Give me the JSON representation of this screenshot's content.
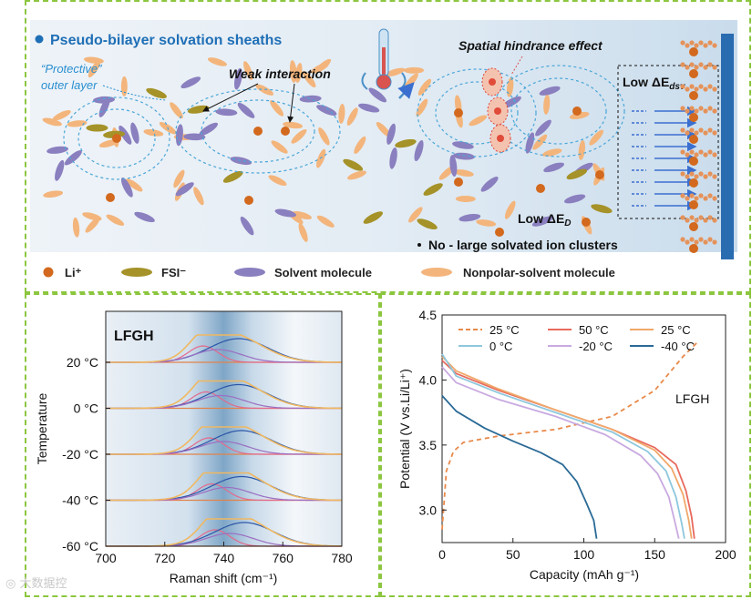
{
  "top": {
    "title": "Pseudo-bilayer solvation sheaths",
    "outer_layer": [
      "“Protective”",
      "outer layer"
    ],
    "weak_interaction": "Weak interaction",
    "spatial_hindrance": "Spatial hindrance effect",
    "low_edsv": "Low ΔE",
    "low_edsv_sub": "dsv",
    "low_ed": "Low ΔE",
    "low_ed_sub": "D",
    "no_clusters": "No - large solvated ion clusters",
    "legend": [
      {
        "label": "Li⁺",
        "kind": "li"
      },
      {
        "label": "FSI⁻",
        "kind": "fsi"
      },
      {
        "label": "Solvent molecule",
        "kind": "solvent"
      },
      {
        "label": "Nonpolar-solvent molecule",
        "kind": "nonpolar"
      }
    ],
    "colors": {
      "li": "#d2691e",
      "fsi": "#a59228",
      "solvent": "#8a7fbf",
      "nonpolar": "#f3b57c",
      "title": "#1f6fb6",
      "electrode": "#2a6cb0"
    }
  },
  "chart_data": [
    {
      "type": "line",
      "title": "LFGH",
      "xlabel": "Raman shift (cm⁻¹)",
      "ylabel": "Temperature",
      "xlim": [
        700,
        780
      ],
      "xticks": [
        "700",
        "720",
        "740",
        "760",
        "780"
      ],
      "yticks": [
        "20 °C",
        "0 °C",
        "-20 °C",
        "-40 °C",
        "-60 °C"
      ],
      "series": [
        {
          "temp": "20 °C",
          "envelope_peak": 738,
          "peaks": [
            733,
            745,
            738
          ]
        },
        {
          "temp": "0 °C",
          "envelope_peak": 739,
          "peaks": [
            734,
            745,
            739
          ]
        },
        {
          "temp": "-20 °C",
          "envelope_peak": 740,
          "peaks": [
            735,
            746,
            740
          ]
        },
        {
          "temp": "-40 °C",
          "envelope_peak": 741,
          "peaks": [
            736,
            746,
            741
          ]
        },
        {
          "temp": "-60 °C",
          "envelope_peak": 742,
          "peaks": [
            737,
            747,
            742
          ]
        }
      ]
    },
    {
      "type": "line",
      "annotation": "LFGH",
      "xlabel": "Capacity (mAh g⁻¹)",
      "ylabel": "Potential (V vs.Li/Li⁺)",
      "xlim": [
        0,
        200
      ],
      "ylim": [
        2.75,
        4.5
      ],
      "xticks": [
        "0",
        "50",
        "100",
        "150",
        "200"
      ],
      "yticks": [
        "3.0",
        "3.5",
        "4.0",
        "4.5"
      ],
      "series": [
        {
          "name": "25 °C",
          "color": "#e8894a",
          "dashed": true,
          "points": [
            [
              0,
              2.85
            ],
            [
              3,
              3.3
            ],
            [
              8,
              3.45
            ],
            [
              15,
              3.52
            ],
            [
              40,
              3.57
            ],
            [
              80,
              3.62
            ],
            [
              120,
              3.72
            ],
            [
              150,
              3.92
            ],
            [
              170,
              4.18
            ],
            [
              181,
              4.3
            ]
          ]
        },
        {
          "name": "50 °C",
          "color": "#e86a5e",
          "points": [
            [
              0,
              4.15
            ],
            [
              10,
              4.05
            ],
            [
              40,
              3.92
            ],
            [
              80,
              3.77
            ],
            [
              120,
              3.62
            ],
            [
              150,
              3.48
            ],
            [
              165,
              3.35
            ],
            [
              172,
              3.15
            ],
            [
              176,
              2.95
            ],
            [
              178,
              2.78
            ]
          ]
        },
        {
          "name": "25 °C",
          "color": "#f0a86a",
          "points": [
            [
              0,
              4.18
            ],
            [
              10,
              4.07
            ],
            [
              40,
              3.93
            ],
            [
              80,
              3.77
            ],
            [
              120,
              3.62
            ],
            [
              150,
              3.46
            ],
            [
              162,
              3.32
            ],
            [
              170,
              3.12
            ],
            [
              174,
              2.92
            ],
            [
              176,
              2.78
            ]
          ]
        },
        {
          "name": "0 °C",
          "color": "#8ec7dd",
          "points": [
            [
              0,
              4.2
            ],
            [
              10,
              4.03
            ],
            [
              40,
              3.9
            ],
            [
              80,
              3.75
            ],
            [
              120,
              3.6
            ],
            [
              145,
              3.45
            ],
            [
              158,
              3.3
            ],
            [
              165,
              3.1
            ],
            [
              169,
              2.9
            ],
            [
              171,
              2.78
            ]
          ]
        },
        {
          "name": "-20 °C",
          "color": "#c9a9e0",
          "points": [
            [
              0,
              4.1
            ],
            [
              10,
              3.98
            ],
            [
              40,
              3.85
            ],
            [
              80,
              3.72
            ],
            [
              115,
              3.58
            ],
            [
              140,
              3.42
            ],
            [
              152,
              3.28
            ],
            [
              160,
              3.1
            ],
            [
              164,
              2.92
            ],
            [
              167,
              2.78
            ]
          ]
        },
        {
          "name": "-40 °C",
          "color": "#2a6a96",
          "points": [
            [
              0,
              3.88
            ],
            [
              10,
              3.76
            ],
            [
              30,
              3.63
            ],
            [
              50,
              3.53
            ],
            [
              70,
              3.44
            ],
            [
              85,
              3.35
            ],
            [
              95,
              3.22
            ],
            [
              102,
              3.05
            ],
            [
              107,
              2.92
            ],
            [
              109,
              2.78
            ]
          ]
        }
      ]
    }
  ]
}
